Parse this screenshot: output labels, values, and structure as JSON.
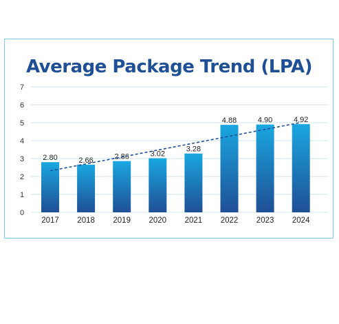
{
  "chart_data": {
    "type": "bar",
    "title": "Average Package Trend (LPA)",
    "xlabel": "",
    "ylabel": "",
    "categories": [
      "2017",
      "2018",
      "2019",
      "2020",
      "2021",
      "2022",
      "2023",
      "2024"
    ],
    "values": [
      2.8,
      2.66,
      2.86,
      3.02,
      3.28,
      4.88,
      4.9,
      4.92
    ],
    "value_labels": [
      "2.80",
      "2.66",
      "2.86",
      "3.02",
      "3.28",
      "4.88",
      "4.90",
      "4.92"
    ],
    "ylim": [
      0,
      7
    ],
    "yticks": [
      "0",
      "1",
      "2",
      "3",
      "4",
      "5",
      "6",
      "7"
    ],
    "grid": true,
    "trendline": "linear, dashed",
    "colors": {
      "bar_top": "#1aa7e0",
      "bar_bottom": "#1f4f95",
      "trendline": "#1f4f95",
      "title": "#1f4f95",
      "border": "#7fc6e6",
      "grid": "#cfe6f2"
    }
  }
}
